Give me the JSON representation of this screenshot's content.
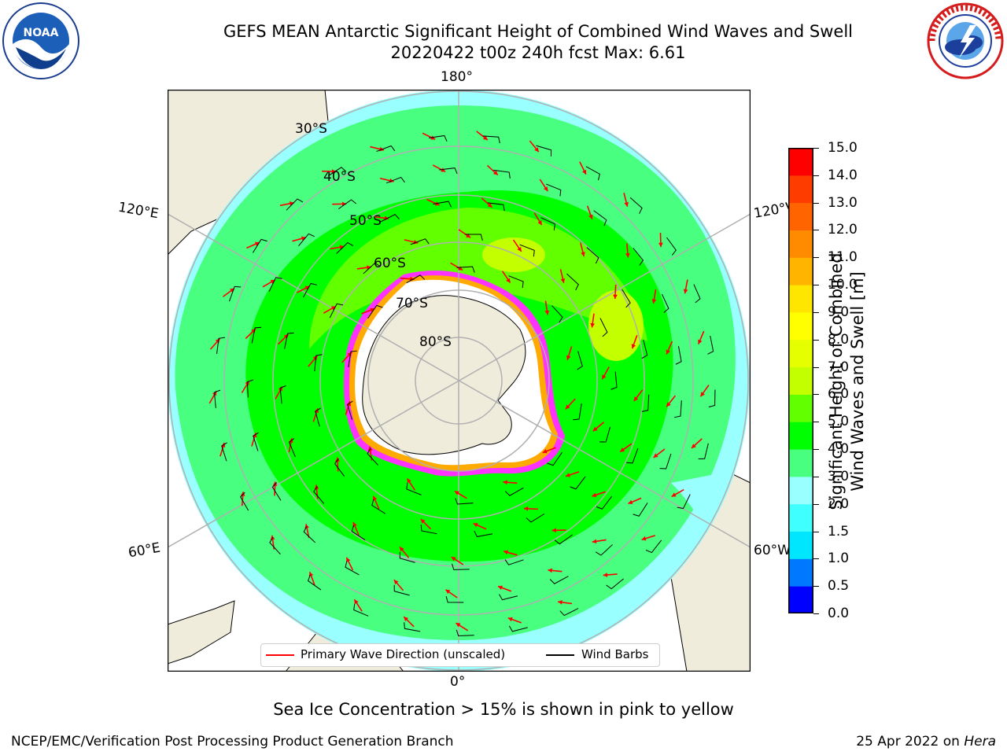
{
  "title": {
    "line1": "GEFS MEAN Antarctic Significant Height of Combined Wind Waves and Swell",
    "line2": "20220422 t00z 240h fcst   Max: 6.61"
  },
  "logos": {
    "left": "noaa-logo",
    "right": "nws-logo",
    "left_text": "NOAA"
  },
  "map": {
    "longitude_labels": {
      "top": "180°",
      "bottom": "0°",
      "upper_left": "120°E",
      "upper_right": "120°W",
      "lower_left": "60°E",
      "lower_right": "60°W"
    },
    "latitude_labels": [
      "30°S",
      "40°S",
      "50°S",
      "60°S",
      "70°S",
      "80°S"
    ],
    "colors": {
      "land": "#efecdc",
      "ice_shelf": "#ffffff",
      "grid": "#b0b0b0",
      "wave_arrow": "#ff0000",
      "wind_barb": "#000000",
      "sea_ice_edge": [
        "#ff33ff",
        "#ffaa00"
      ]
    }
  },
  "colorbar": {
    "label": "Significant Height of Combined Wind Waves and Swell [m]",
    "label_line1": "Significant Height of Combined",
    "label_line2": "Wind Waves and Swell [m]",
    "ticks": [
      "15.0",
      "14.0",
      "13.0",
      "12.0",
      "11.0",
      "10.0",
      "9.0",
      "8.0",
      "7.0",
      "6.0",
      "5.0",
      "4.0",
      "3.0",
      "2.0",
      "1.5",
      "1.0",
      "0.5",
      "0.0"
    ],
    "colors": [
      "#0000ff",
      "#0078ff",
      "#00e6ff",
      "#40ffff",
      "#99ffff",
      "#48ff80",
      "#00ff00",
      "#62ff00",
      "#c4ff00",
      "#e6ff00",
      "#ffff00",
      "#ffe600",
      "#ffb400",
      "#ff8c00",
      "#ff6400",
      "#ff3c00",
      "#ff0000"
    ]
  },
  "legend": {
    "wave": "Primary Wave Direction (unscaled)",
    "wind": "Wind Barbs"
  },
  "note": "Sea Ice Concentration > 15% is shown in pink to yellow",
  "footer": {
    "left": "NCEP/EMC/Verification Post Processing Product Generation Branch",
    "right_date": "25 Apr 2022 on ",
    "right_machine": "Hera"
  }
}
